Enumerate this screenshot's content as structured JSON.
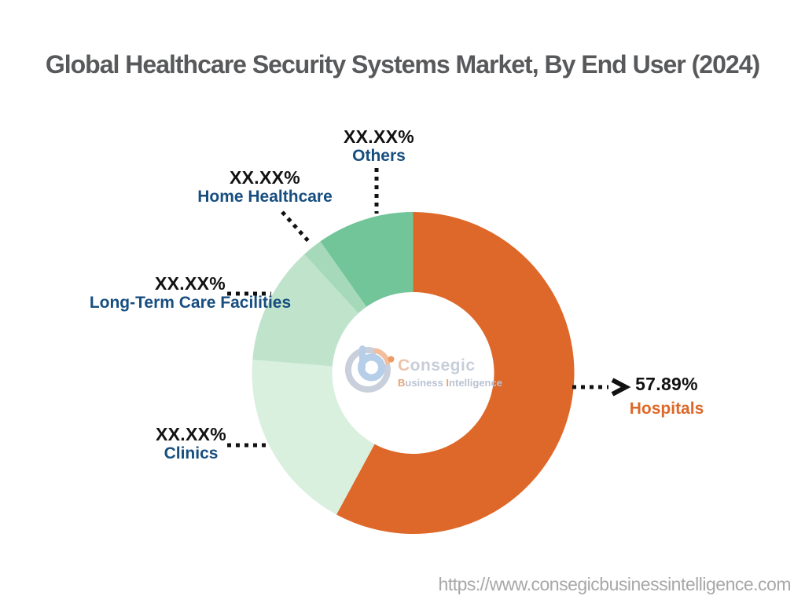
{
  "header": {
    "title": "Global Healthcare Security Systems Market, By End User (2024)"
  },
  "footer": {
    "website_url": "https://www.consegicbusinessintelligence.com"
  },
  "watermark": {
    "brand_first_letter": "C",
    "brand_rest": "onsegic",
    "tagline_p1": "B",
    "tagline_p2": "usiness ",
    "tagline_p3": "I",
    "tagline_p4": "ntelligence"
  },
  "colors": {
    "hospitals_orange": "#DE6829",
    "label_navy": "#174E80",
    "percent_black": "#121212",
    "title_gray": "#58595B",
    "url_gray": "#A8A8A8",
    "connector_black": "#111111"
  },
  "chart_data": {
    "type": "pie",
    "subtype": "donut",
    "title": "Global Healthcare Security Systems Market, By End User (2024)",
    "unit": "%",
    "start_angle_deg": 0,
    "direction": "clockwise",
    "hole_ratio": 0.5,
    "legend_position": "callout-labels",
    "segments": [
      {
        "label": "Hospitals",
        "display_value": "57.89%",
        "value_pct": 57.89,
        "color": "#DE6829"
      },
      {
        "label": "Clinics",
        "display_value": "XX.XX%",
        "value_pct": 18.42,
        "color": "#D9F0DF"
      },
      {
        "label": "Long-Term Care Facilities",
        "display_value": "XX.XX%",
        "value_pct": 11.89,
        "color": "#BFE4CB"
      },
      {
        "label": "Home Healthcare",
        "display_value": "XX.XX%",
        "value_pct": 2.03,
        "color": "#A6D9BA"
      },
      {
        "label": "Others",
        "display_value": "XX.XX%",
        "value_pct": 9.77,
        "color": "#72C599"
      }
    ]
  }
}
